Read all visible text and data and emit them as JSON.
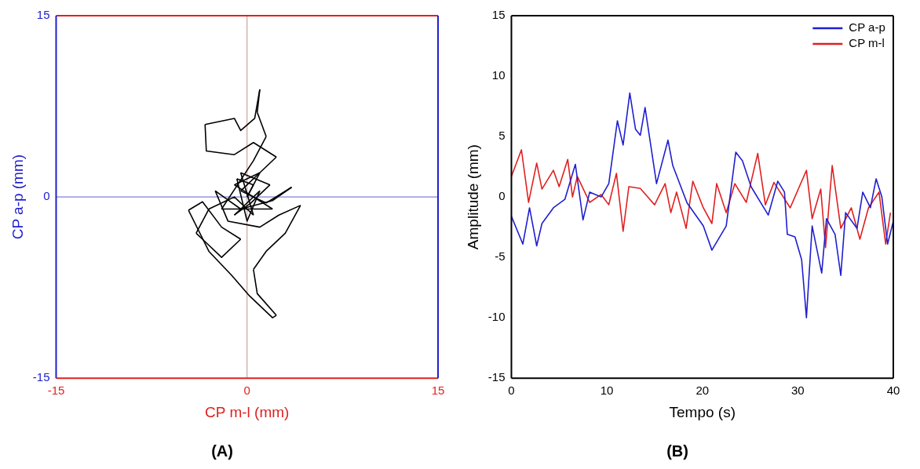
{
  "chart_data": [
    {
      "type": "line",
      "title": "(A)",
      "xlabel": "CP m-l (mm)",
      "ylabel": "CP a-p (mm)",
      "xlim": [
        -15,
        15
      ],
      "ylim": [
        -15,
        15
      ],
      "xticks": [
        -15,
        0,
        15
      ],
      "yticks": [
        -15,
        0,
        15
      ],
      "marker": "none",
      "ref_lines": [
        {
          "axis": "x",
          "value": 0,
          "color": "#c09090"
        },
        {
          "axis": "y",
          "value": 0,
          "color": "#6060d0"
        }
      ],
      "series": [
        {
          "color": "#000000",
          "x": [
            0,
            1
          ],
          "values": [
            0,
            2
          ]
        },
        {
          "color": "#000000",
          "x": [
            1,
            -1
          ],
          "values": [
            2,
            1
          ]
        },
        {
          "color": "#000000",
          "x": [
            -1,
            2
          ],
          "values": [
            1,
            -1
          ]
        },
        {
          "color": "#000000",
          "x": [
            2,
            -2
          ],
          "values": [
            -1,
            -1
          ]
        },
        {
          "color": "#000000",
          "x": [
            -2,
            0.5,
            1.5
          ],
          "values": [
            -1,
            3,
            5
          ]
        },
        {
          "color": "#000000",
          "x": [
            1.5,
            0.8
          ],
          "values": [
            5,
            7
          ]
        },
        {
          "color": "#000000",
          "x": [
            0.8,
            1.0
          ],
          "values": [
            7,
            8.9
          ]
        },
        {
          "color": "#000000",
          "x": [
            1.0,
            0.6,
            -0.5,
            -1,
            -3.3
          ],
          "values": [
            8.9,
            6.5,
            5.5,
            6.5,
            6
          ]
        },
        {
          "color": "#000000",
          "x": [
            -3.3,
            -3.2,
            -1,
            0.5,
            2.3
          ],
          "values": [
            6,
            3.8,
            3.5,
            4.5,
            3.3
          ]
        },
        {
          "color": "#000000",
          "x": [
            2.3,
            1,
            -0.5
          ],
          "values": [
            3.3,
            2,
            0.5
          ]
        },
        {
          "color": "#000000",
          "x": [
            -0.5,
            1.5,
            3.5
          ],
          "values": [
            0.5,
            -0.5,
            0.8
          ]
        },
        {
          "color": "#000000",
          "x": [
            3.5,
            2,
            -0.5,
            -2.5
          ],
          "values": [
            0.8,
            -0.3,
            -1,
            0.5
          ]
        },
        {
          "color": "#000000",
          "x": [
            -2.5,
            -1.5,
            1,
            2.5,
            4.2
          ],
          "values": [
            0.5,
            -2,
            -2.5,
            -1.5,
            -0.7
          ]
        },
        {
          "color": "#000000",
          "x": [
            4.2,
            3,
            1.5,
            0.5
          ],
          "values": [
            -0.7,
            -3,
            -4.5,
            -6
          ]
        },
        {
          "color": "#000000",
          "x": [
            0.5,
            0.8,
            2.3
          ],
          "values": [
            -6,
            -8,
            -9.8
          ]
        },
        {
          "color": "#000000",
          "x": [
            2.3,
            2.0,
            0.2,
            -1.2,
            -3,
            -4.6
          ],
          "values": [
            -9.8,
            -10,
            -8.2,
            -6.5,
            -4.5,
            -1.1
          ]
        },
        {
          "color": "#000000",
          "x": [
            -4.6,
            -3.5,
            -2,
            -0.5
          ],
          "values": [
            -1.1,
            -0.4,
            -2.5,
            -3.5
          ]
        },
        {
          "color": "#000000",
          "x": [
            -0.5,
            -2,
            -4
          ],
          "values": [
            -3.5,
            -5,
            -3
          ]
        },
        {
          "color": "#000000",
          "x": [
            -4,
            -3,
            -1,
            0.5
          ],
          "values": [
            -3,
            -1,
            0,
            -1.5
          ]
        },
        {
          "color": "#000000",
          "x": [
            0.5,
            -0.5
          ],
          "values": [
            -1.5,
            2
          ]
        },
        {
          "color": "#000000",
          "x": [
            -0.5,
            1.8
          ],
          "values": [
            2,
            1
          ]
        },
        {
          "color": "#000000",
          "x": [
            1.8,
            0.3,
            -1
          ],
          "values": [
            1,
            -0.5,
            -1.5
          ]
        },
        {
          "color": "#000000",
          "x": [
            -1,
            1
          ],
          "values": [
            -1.5,
            0.5
          ]
        },
        {
          "color": "#000000",
          "x": [
            1,
            0,
            -0.8
          ],
          "values": [
            0.5,
            -2,
            1.5
          ]
        },
        {
          "color": "#000000",
          "x": [
            -0.8,
            0.5
          ],
          "values": [
            1.5,
            1
          ]
        },
        {
          "color": "#000000",
          "x": [
            0.5,
            0
          ],
          "values": [
            1,
            0
          ]
        }
      ]
    },
    {
      "type": "line",
      "title": "(B)",
      "xlabel": "Tempo (s)",
      "ylabel": "Amplitude (mm)",
      "xlim": [
        0,
        40
      ],
      "ylim": [
        -15,
        15
      ],
      "xticks": [
        0,
        10,
        20,
        30,
        40
      ],
      "yticks": [
        -15,
        -10,
        -5,
        0,
        5,
        10,
        15
      ],
      "legend": "top right",
      "marker": "none",
      "series": [
        {
          "name": "CP a-p",
          "color": "#1f1fd0",
          "x": [
            0,
            1.2,
            1.9,
            2.65,
            3.2,
            4.4,
            5.6,
            6.7,
            7.5,
            8.2,
            9.4,
            10.2,
            11.1,
            11.7,
            12.4,
            13.0,
            13.5,
            14.0,
            15.2,
            16.4,
            16.9,
            18.4,
            20.1,
            21.0,
            22.5,
            23.5,
            24.2,
            25.1,
            26.9,
            27.9,
            28.6,
            28.9,
            29.7,
            30.4,
            30.9,
            31.5,
            32.5,
            33.0,
            33.9,
            34.5,
            35.0,
            36.2,
            36.8,
            37.6,
            38.2,
            38.8,
            39.4,
            40
          ],
          "values": [
            -1.6,
            -3.9,
            -0.9,
            -4.05,
            -2.2,
            -0.9,
            -0.2,
            2.7,
            -1.9,
            0.4,
            0,
            1.1,
            6.3,
            4.3,
            8.6,
            5.6,
            5.1,
            7.4,
            1.1,
            4.7,
            2.6,
            -0.5,
            -2.4,
            -4.4,
            -2.4,
            3.7,
            3.0,
            0.85,
            -1.5,
            1.3,
            0.4,
            -3.1,
            -3.3,
            -5.2,
            -10.0,
            -2.4,
            -6.3,
            -1.8,
            -3.1,
            -6.5,
            -1.3,
            -2.6,
            0.4,
            -0.9,
            1.5,
            0,
            -3.9,
            -2
          ]
        },
        {
          "name": "CP m-l",
          "color": "#e02020",
          "x": [
            0,
            1.05,
            1.8,
            2.65,
            3.2,
            4.4,
            5.0,
            5.9,
            6.4,
            6.9,
            8.2,
            9.4,
            10.2,
            11.0,
            11.7,
            12.3,
            13.5,
            15.0,
            16.1,
            16.7,
            17.3,
            18.3,
            19.0,
            20.1,
            21.0,
            21.5,
            22.5,
            23.4,
            24.6,
            25.8,
            26.6,
            27.5,
            29.2,
            30.9,
            31.5,
            32.4,
            32.9,
            33.6,
            34.5,
            35.6,
            36.5,
            37.4,
            38.5,
            39.2,
            39.7
          ],
          "values": [
            1.7,
            3.9,
            -0.45,
            2.8,
            0.65,
            2.2,
            0.85,
            3.1,
            0,
            1.7,
            -0.45,
            0.2,
            -0.65,
            1.95,
            -2.85,
            0.85,
            0.7,
            -0.65,
            1.1,
            -1.3,
            0.4,
            -2.6,
            1.3,
            -0.9,
            -2.2,
            1.1,
            -1.3,
            1.1,
            -0.45,
            3.6,
            -0.65,
            1.2,
            -0.9,
            2.2,
            -1.8,
            0.65,
            -4.2,
            2.6,
            -2.6,
            -0.9,
            -3.5,
            -0.9,
            0.4,
            -3.9,
            -1.3
          ]
        }
      ]
    }
  ]
}
